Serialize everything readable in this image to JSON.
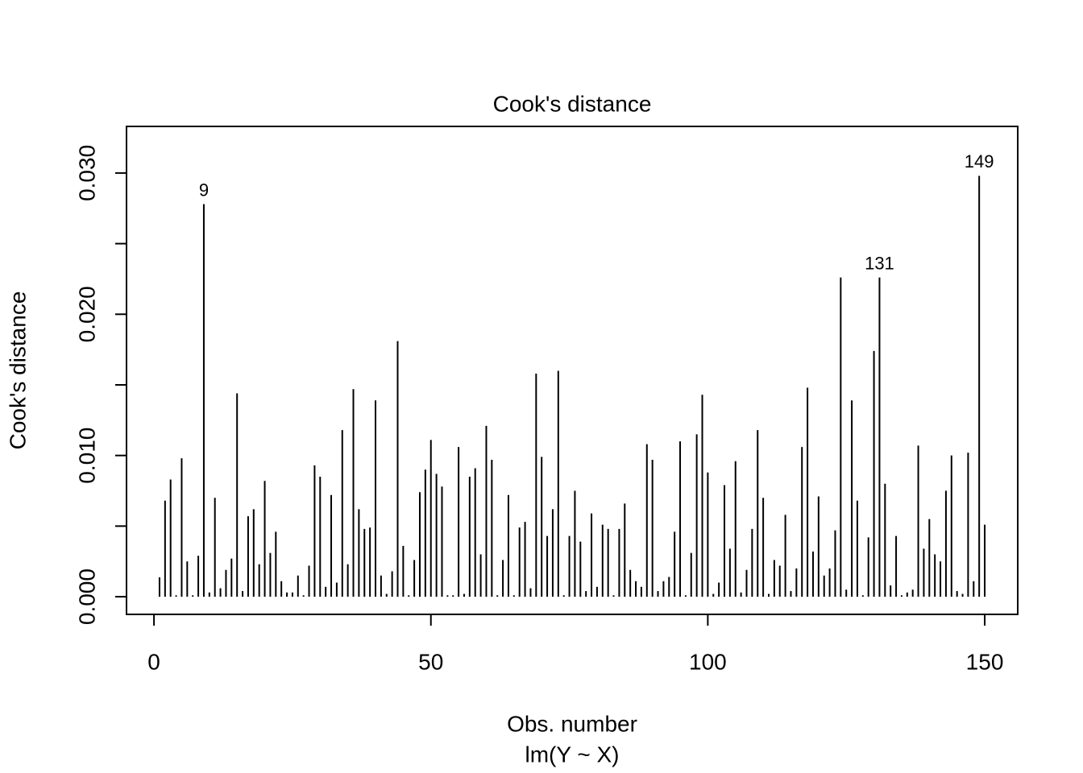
{
  "chart_data": {
    "type": "spike",
    "title": "Cook's distance",
    "xlabel": "Obs. number",
    "subtitle": "lm(Y ~ X)",
    "ylabel": "Cook's distance",
    "color": "#000000",
    "x": [
      1,
      2,
      3,
      4,
      5,
      6,
      7,
      8,
      9,
      10,
      11,
      12,
      13,
      14,
      15,
      16,
      17,
      18,
      19,
      20,
      21,
      22,
      23,
      24,
      25,
      26,
      27,
      28,
      29,
      30,
      31,
      32,
      33,
      34,
      35,
      36,
      37,
      38,
      39,
      40,
      41,
      42,
      43,
      44,
      45,
      46,
      47,
      48,
      49,
      50,
      51,
      52,
      53,
      54,
      55,
      56,
      57,
      58,
      59,
      60,
      61,
      62,
      63,
      64,
      65,
      66,
      67,
      68,
      69,
      70,
      71,
      72,
      73,
      74,
      75,
      76,
      77,
      78,
      79,
      80,
      81,
      82,
      83,
      84,
      85,
      86,
      87,
      88,
      89,
      90,
      91,
      92,
      93,
      94,
      95,
      96,
      97,
      98,
      99,
      100,
      101,
      102,
      103,
      104,
      105,
      106,
      107,
      108,
      109,
      110,
      111,
      112,
      113,
      114,
      115,
      116,
      117,
      118,
      119,
      120,
      121,
      122,
      123,
      124,
      125,
      126,
      127,
      128,
      129,
      130,
      131,
      132,
      133,
      134,
      135,
      136,
      137,
      138,
      139,
      140,
      141,
      142,
      143,
      144,
      145,
      146,
      147,
      148,
      149,
      150
    ],
    "values": [
      0.00137,
      0.0068,
      0.0083,
      0.0001,
      0.0098,
      0.0025,
      0.0001,
      0.0029,
      0.0278,
      0.0003,
      0.007,
      0.0006,
      0.0019,
      0.0027,
      0.0144,
      0.0004,
      0.0057,
      0.0062,
      0.0023,
      0.0082,
      0.0031,
      0.0046,
      0.0011,
      0.0003,
      0.0003,
      0.0015,
      0.0001,
      0.0022,
      0.0093,
      0.0085,
      0.0007,
      0.0072,
      0.001,
      0.0118,
      0.0023,
      0.0147,
      0.0062,
      0.0048,
      0.0049,
      0.0139,
      0.0015,
      0.0002,
      0.0018,
      0.0181,
      0.0036,
      0.0001,
      0.0026,
      0.0074,
      0.009,
      0.0111,
      0.0087,
      0.0078,
      0.0001,
      0.0001,
      0.0106,
      0.0002,
      0.0085,
      0.0091,
      0.003,
      0.0121,
      0.0097,
      0.0001,
      0.0026,
      0.0072,
      0.0001,
      0.0049,
      0.0053,
      0.0006,
      0.0158,
      0.0099,
      0.0043,
      0.0062,
      0.016,
      0.0001,
      0.0043,
      0.0075,
      0.0039,
      0.0004,
      0.0059,
      0.0007,
      0.0051,
      0.0048,
      0.0001,
      0.0048,
      0.0066,
      0.0019,
      0.0011,
      0.0007,
      0.0108,
      0.0097,
      0.0004,
      0.0011,
      0.0014,
      0.0046,
      0.011,
      0.0001,
      0.0031,
      0.0115,
      0.0143,
      0.0088,
      0.0002,
      0.001,
      0.0079,
      0.0034,
      0.0096,
      0.0003,
      0.0019,
      0.0048,
      0.0118,
      0.007,
      0.0002,
      0.0026,
      0.0022,
      0.0058,
      0.0004,
      0.002,
      0.0106,
      0.0148,
      0.0032,
      0.0071,
      0.0015,
      0.002,
      0.0047,
      0.0226,
      0.0005,
      0.0139,
      0.0068,
      0.0001,
      0.0042,
      0.0174,
      0.0226,
      0.008,
      0.0008,
      0.0043,
      0.0001,
      0.0003,
      0.0005,
      0.0107,
      0.0034,
      0.0055,
      0.003,
      0.0025,
      0.0075,
      0.01,
      0.0004,
      0.0002,
      0.0102,
      0.0011,
      0.0298,
      0.0051
    ],
    "annotations": [
      9,
      131,
      149
    ],
    "xlim": [
      -4.96,
      155.96
    ],
    "ylim": [
      -0.00125,
      0.0333
    ],
    "xticks": [
      0,
      50,
      100,
      150
    ],
    "yticks": [
      {
        "value": 0,
        "label": "0.000"
      },
      {
        "value": 0.005,
        "label": null
      },
      {
        "value": 0.01,
        "label": "0.010"
      },
      {
        "value": 0.015,
        "label": null
      },
      {
        "value": 0.02,
        "label": "0.020"
      },
      {
        "value": 0.025,
        "label": null
      },
      {
        "value": 0.03,
        "label": "0.030"
      }
    ]
  }
}
